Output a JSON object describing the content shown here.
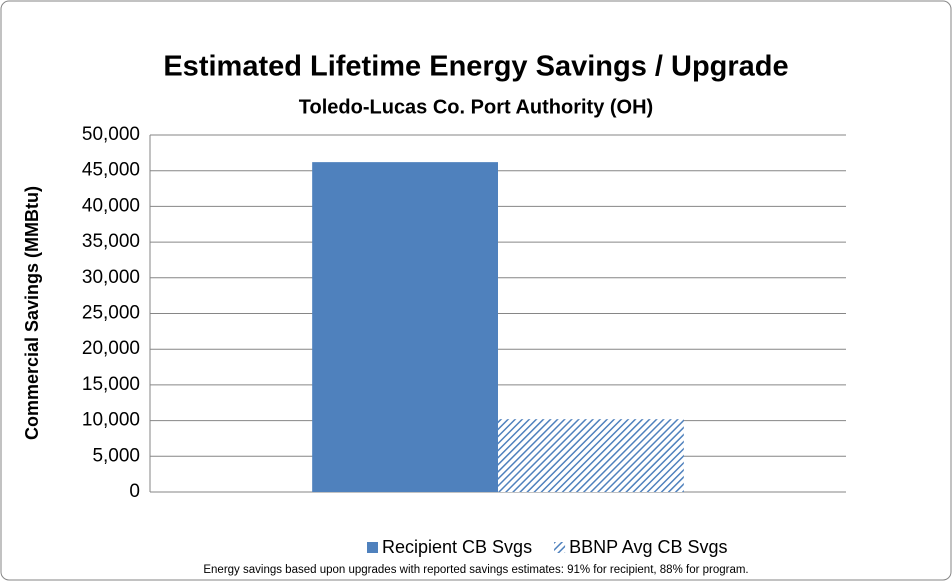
{
  "chart_data": {
    "type": "bar",
    "title": "Estimated Lifetime Energy Savings / Upgrade",
    "subtitle": "Toledo-Lucas Co. Port Authority (OH)",
    "y_label": "Commercial Savings (MMBtu)",
    "annotation": "Energy savings based upon upgrades with reported savings estimates: 91% for recipient, 88% for program.",
    "categories": [
      null
    ],
    "series": [
      {
        "name": "Recipient CB Svgs",
        "color": "#4f81bd",
        "values": [
          46200
        ]
      },
      {
        "name": "BBNP Avg CB Svgs",
        "color": "#4f81bd",
        "hatch": true,
        "values": [
          10200
        ]
      }
    ],
    "ylim": [
      0,
      50000
    ],
    "yticks": [
      0,
      {
        "value": 5000,
        "label": "5,000"
      },
      {
        "value": 10000,
        "label": "10,000"
      },
      {
        "value": 15000,
        "label": "15,000"
      },
      {
        "value": 20000,
        "label": "20,000"
      },
      {
        "value": 25000,
        "label": "25,000"
      },
      {
        "value": 30000,
        "label": "30,000"
      },
      {
        "value": 35000,
        "label": "35,000"
      },
      {
        "value": 40000,
        "label": "40,000"
      },
      {
        "value": 45000,
        "label": "45,000"
      },
      {
        "value": 50000,
        "label": "50,000"
      }
    ],
    "grid": true,
    "legend": "bottom"
  }
}
